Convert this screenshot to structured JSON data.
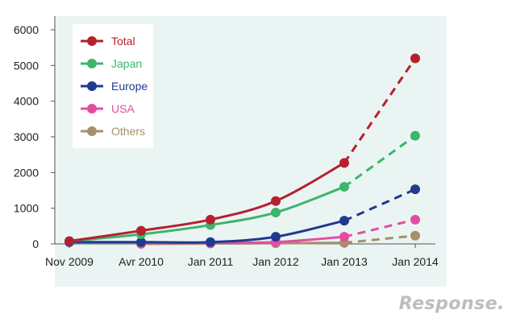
{
  "chart_data": {
    "type": "line",
    "title": "",
    "xlabel": "",
    "ylabel": "",
    "categories": [
      "Nov 2009",
      "Avr 2010",
      "Jan 2011",
      "Jan 2012",
      "Jan 2013",
      "Jan 2014"
    ],
    "ylim": [
      0,
      6000
    ],
    "yticks": [
      0,
      1000,
      2000,
      3000,
      4000,
      5000,
      6000
    ],
    "grid": false,
    "legend_position": "top-left",
    "projection_note": "segments after Jan 2013 drawn dashed",
    "series": [
      {
        "name": "Total",
        "color": "#b5202e",
        "x": [
          0,
          1,
          2,
          3,
          4,
          5
        ],
        "values": [
          80,
          370,
          680,
          1200,
          2270,
          5200
        ],
        "dashed_from_index": 4
      },
      {
        "name": "Japan",
        "color": "#3db56b",
        "x": [
          0,
          1,
          2,
          3,
          4,
          5
        ],
        "values": [
          80,
          270,
          530,
          880,
          1600,
          3030
        ],
        "dashed_from_index": 4
      },
      {
        "name": "Europe",
        "color": "#1f3a8e",
        "x": [
          0,
          1,
          2,
          3,
          4,
          5
        ],
        "values": [
          50,
          50,
          50,
          200,
          650,
          1530
        ],
        "dashed_from_index": 4
      },
      {
        "name": "USA",
        "color": "#e34da1",
        "x": [
          1,
          2,
          3,
          4,
          5
        ],
        "values": [
          20,
          30,
          50,
          200,
          680
        ],
        "dashed_from_index": 3
      },
      {
        "name": "Others",
        "color": "#a68f6a",
        "x": [
          1,
          2,
          3,
          4,
          5
        ],
        "values": [
          0,
          10,
          20,
          30,
          230
        ],
        "dashed_from_index": 3
      }
    ]
  },
  "watermark": "Response."
}
